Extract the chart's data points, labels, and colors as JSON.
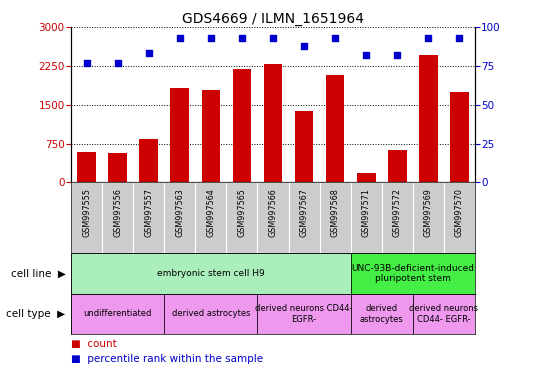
{
  "title": "GDS4669 / ILMN_1651964",
  "samples": [
    "GSM997555",
    "GSM997556",
    "GSM997557",
    "GSM997563",
    "GSM997564",
    "GSM997565",
    "GSM997566",
    "GSM997567",
    "GSM997568",
    "GSM997571",
    "GSM997572",
    "GSM997569",
    "GSM997570"
  ],
  "counts": [
    580,
    570,
    830,
    1820,
    1780,
    2180,
    2280,
    1380,
    2080,
    190,
    630,
    2450,
    1750
  ],
  "percentile": [
    77,
    77,
    83,
    93,
    93,
    93,
    93,
    88,
    93,
    82,
    82,
    93,
    93
  ],
  "bar_color": "#cc0000",
  "dot_color": "#0000cc",
  "ylim_left": [
    0,
    3000
  ],
  "ylim_right": [
    0,
    100
  ],
  "yticks_left": [
    0,
    750,
    1500,
    2250,
    3000
  ],
  "yticks_right": [
    0,
    25,
    50,
    75,
    100
  ],
  "cell_line_groups": [
    {
      "label": "embryonic stem cell H9",
      "start": 0,
      "end": 9,
      "color": "#aaeebb"
    },
    {
      "label": "UNC-93B-deficient-induced\npluripotent stem",
      "start": 9,
      "end": 13,
      "color": "#44ee44"
    }
  ],
  "cell_type_groups": [
    {
      "label": "undifferentiated",
      "start": 0,
      "end": 3,
      "color": "#ee99ee"
    },
    {
      "label": "derived astrocytes",
      "start": 3,
      "end": 6,
      "color": "#ee99ee"
    },
    {
      "label": "derived neurons CD44-\nEGFR-",
      "start": 6,
      "end": 9,
      "color": "#ee99ee"
    },
    {
      "label": "derived\nastrocytes",
      "start": 9,
      "end": 11,
      "color": "#ee99ee"
    },
    {
      "label": "derived neurons\nCD44- EGFR-",
      "start": 11,
      "end": 13,
      "color": "#ee99ee"
    }
  ],
  "sample_bg_color": "#cccccc",
  "legend_count_color": "#cc0000",
  "legend_dot_color": "#0000cc",
  "tick_color_left": "#cc0000",
  "tick_color_right": "#0000cc"
}
